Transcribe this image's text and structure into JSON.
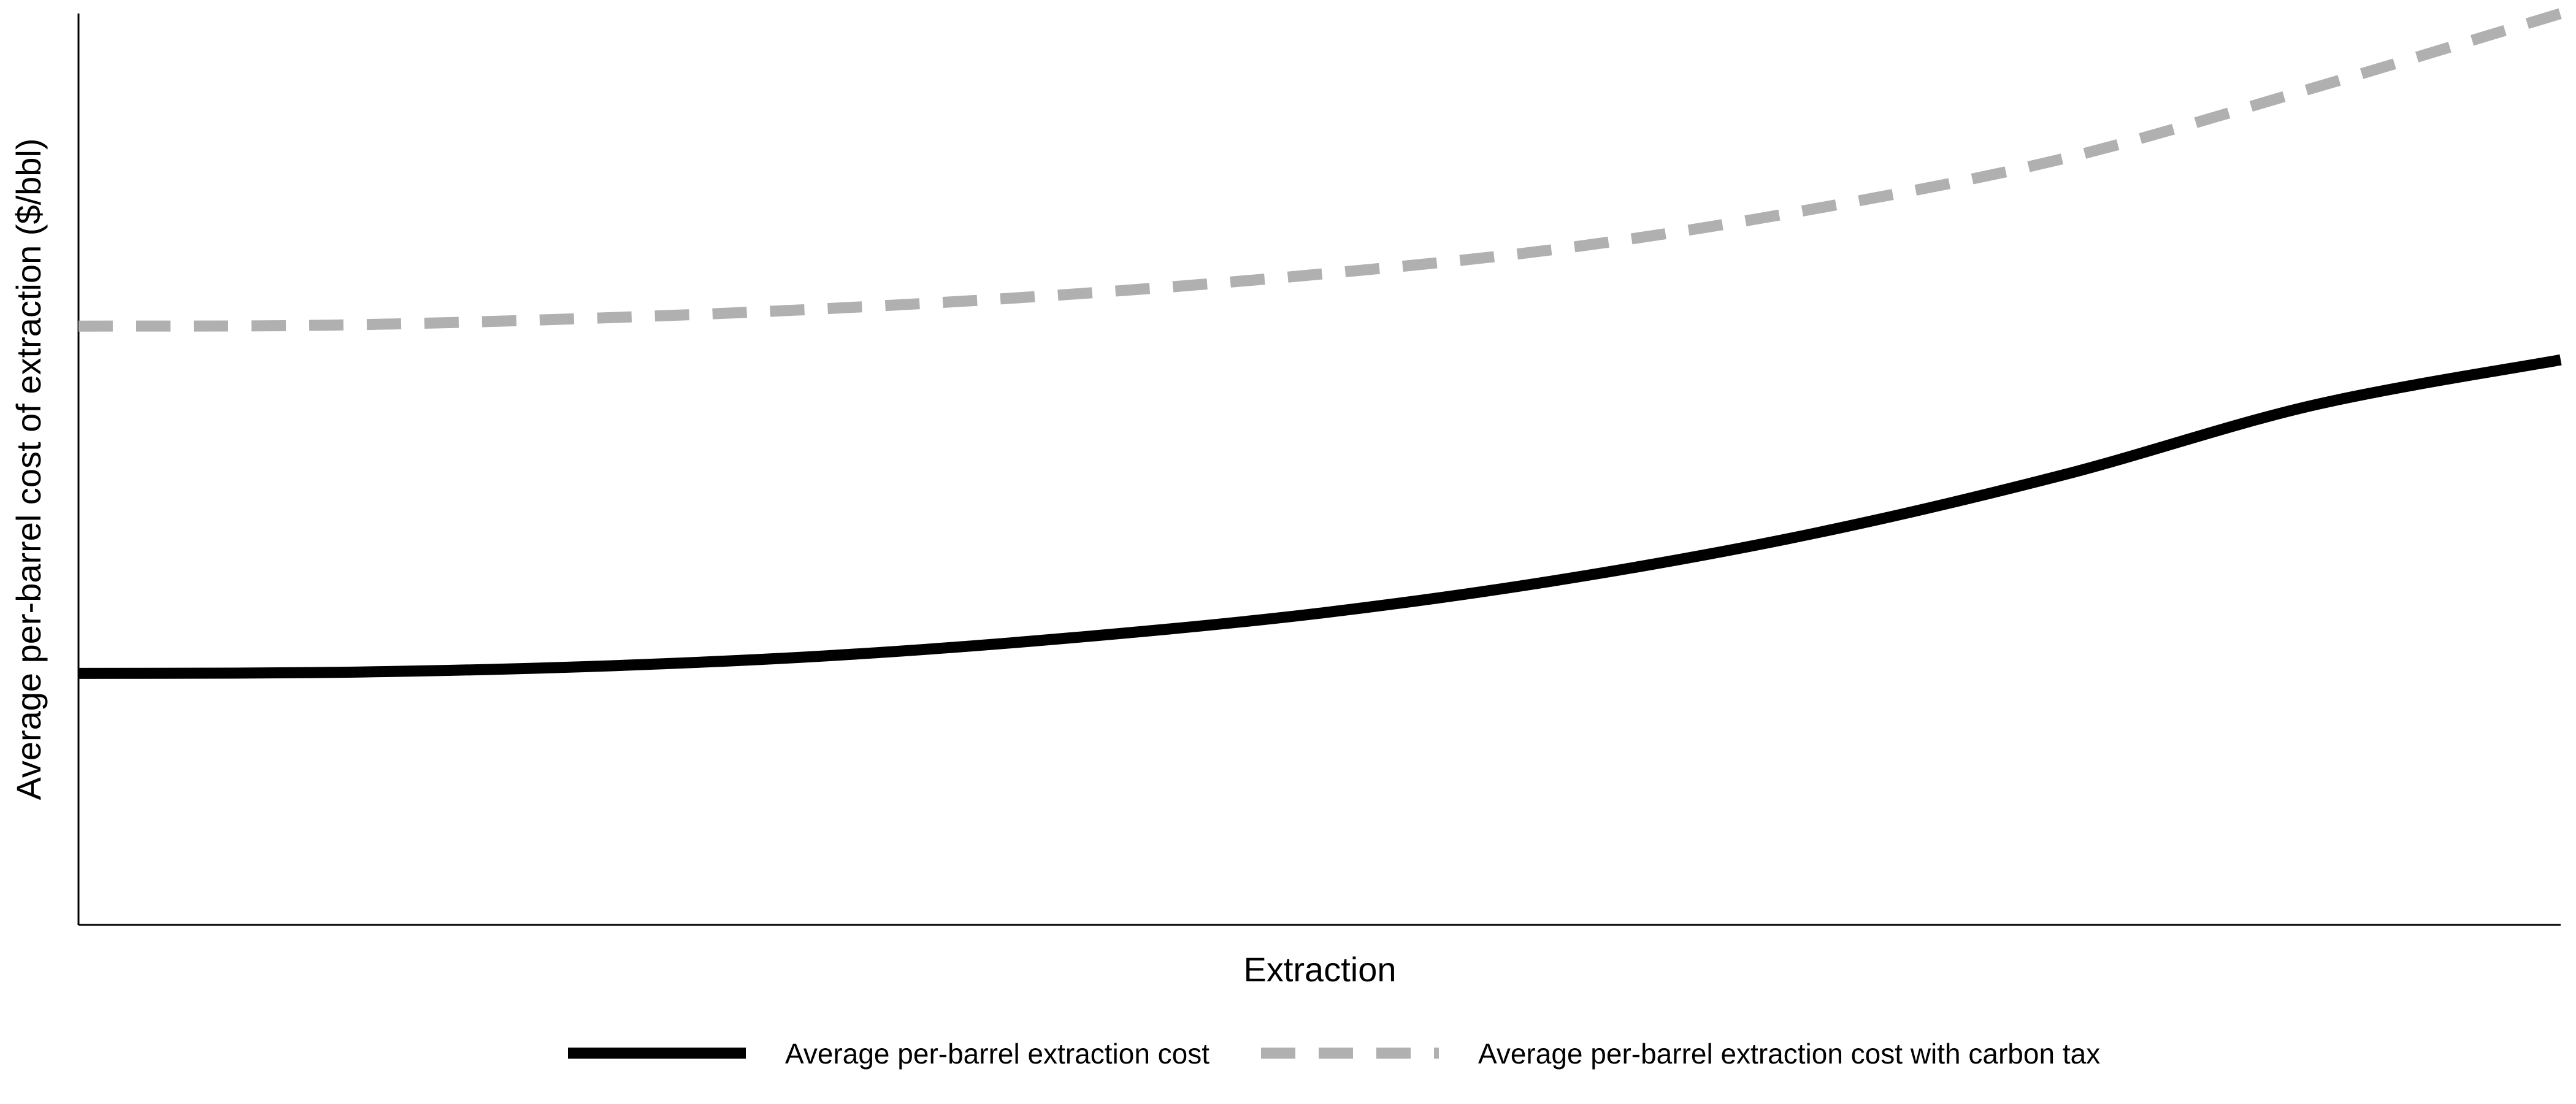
{
  "chart_data": {
    "type": "line",
    "title": "",
    "xlabel": "Extraction",
    "ylabel": "Average per-barrel cost of extraction ($/bbl)",
    "xlim": [
      0,
      100
    ],
    "ylim": [
      0,
      100
    ],
    "x_ticks_shown": false,
    "y_ticks_shown": false,
    "grid": false,
    "legend_position": "bottom",
    "series": [
      {
        "name": "Average per-barrel extraction cost",
        "color": "#000000",
        "dash": "solid",
        "x": [
          0,
          10,
          20,
          30,
          40,
          50,
          60,
          70,
          80,
          90,
          100
        ],
        "y": [
          27.6,
          27.7,
          28.3,
          29.5,
          31.5,
          34.2,
          38.0,
          43.0,
          49.4,
          57.0,
          62.0
        ]
      },
      {
        "name": "Average per-barrel extraction cost with carbon tax",
        "color": "#b0b0b0",
        "dash": "dashed",
        "x": [
          0,
          10,
          20,
          30,
          40,
          50,
          60,
          70,
          80,
          90,
          100
        ],
        "y": [
          65.7,
          65.8,
          66.5,
          67.6,
          69.2,
          71.4,
          74.3,
          78.6,
          84.1,
          91.8,
          100.0
        ]
      }
    ]
  }
}
